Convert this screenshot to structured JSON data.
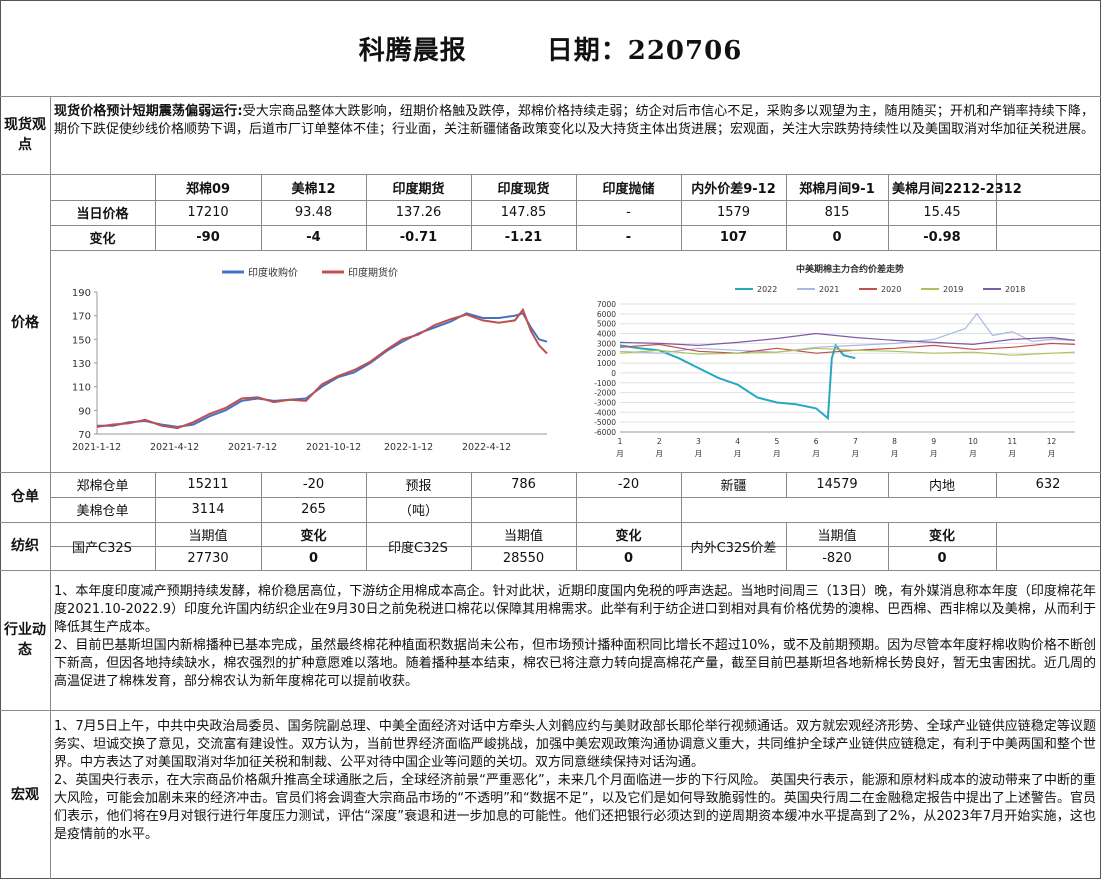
{
  "header": {
    "title": "科腾晨报",
    "date": "日期：220706"
  },
  "sections": {
    "spot": "现货观点",
    "price": "价格",
    "warehouse": "仓单",
    "yarn": "纺织",
    "industry": "行业动态",
    "macro": "宏观"
  },
  "spot_view": {
    "lead": "现货价格预计短期震荡偏弱运行:",
    "text": "受大宗商品整体大跌影响，纽期价格触及跌停，郑棉价格持续走弱；纺企对后市信心不足，采购多以观望为主，随用随买；开机和产销率持续下降，期价下跌促使纱线价格顺势下调，后道市厂订单整体不佳；行业面，关注新疆储备政策变化以及大持货主体出货进展；宏观面，关注大宗跌势持续性以及美国取消对华加征关税进展。"
  },
  "price_table": {
    "headers": [
      "郑棉09",
      "美棉12",
      "印度期货",
      "印度现货",
      "印度抛储",
      "内外价差9-12",
      "郑棉月间9-1",
      "美棉月间2212-2312"
    ],
    "rows": [
      {
        "label": "当日价格",
        "values": [
          "17210",
          "93.48",
          "137.26",
          "147.85",
          "-",
          "1579",
          "815",
          "15.45"
        ]
      },
      {
        "label": "变化",
        "values": [
          "-90",
          "-4",
          "-0.71",
          "-1.21",
          "-",
          "107",
          "0",
          "-0.98"
        ]
      }
    ]
  },
  "chart_data": [
    {
      "type": "line",
      "title": "",
      "legend": [
        "印度收购价",
        "印度期货价"
      ],
      "legend_position": "top",
      "colors": [
        "#4472c4",
        "#c0504d"
      ],
      "x_ticks": [
        "2021-1-12",
        "2021-4-12",
        "2021-7-12",
        "2021-10-12",
        "2022-1-12",
        "2022-4-12"
      ],
      "y_ticks": [
        "70",
        "90",
        "110",
        "130",
        "150",
        "170",
        "190"
      ],
      "ylim": [
        70,
        190
      ],
      "grid": false,
      "series": [
        {
          "name": "印度收购价",
          "points": [
            [
              0,
              77
            ],
            [
              10,
              77
            ],
            [
              20,
              80
            ],
            [
              30,
              81
            ],
            [
              40,
              78
            ],
            [
              50,
              76
            ],
            [
              60,
              78
            ],
            [
              70,
              85
            ],
            [
              80,
              90
            ],
            [
              90,
              98
            ],
            [
              100,
              100
            ],
            [
              110,
              98
            ],
            [
              120,
              99
            ],
            [
              130,
              100
            ],
            [
              140,
              110
            ],
            [
              150,
              118
            ],
            [
              160,
              122
            ],
            [
              170,
              130
            ],
            [
              180,
              140
            ],
            [
              190,
              148
            ],
            [
              200,
              155
            ],
            [
              210,
              160
            ],
            [
              220,
              165
            ],
            [
              230,
              172
            ],
            [
              240,
              168
            ],
            [
              250,
              168
            ],
            [
              260,
              170
            ],
            [
              265,
              172
            ],
            [
              270,
              160
            ],
            [
              275,
              150
            ],
            [
              280,
              148
            ]
          ]
        },
        {
          "name": "印度期货价",
          "points": [
            [
              0,
              76
            ],
            [
              10,
              78
            ],
            [
              20,
              79
            ],
            [
              30,
              82
            ],
            [
              40,
              77
            ],
            [
              50,
              75
            ],
            [
              60,
              80
            ],
            [
              70,
              87
            ],
            [
              80,
              92
            ],
            [
              90,
              100
            ],
            [
              100,
              101
            ],
            [
              110,
              97
            ],
            [
              120,
              99
            ],
            [
              130,
              98
            ],
            [
              140,
              112
            ],
            [
              150,
              119
            ],
            [
              160,
              124
            ],
            [
              170,
              131
            ],
            [
              180,
              141
            ],
            [
              190,
              150
            ],
            [
              200,
              154
            ],
            [
              210,
              162
            ],
            [
              220,
              167
            ],
            [
              230,
              171
            ],
            [
              240,
              166
            ],
            [
              250,
              164
            ],
            [
              260,
              166
            ],
            [
              265,
              175
            ],
            [
              270,
              157
            ],
            [
              275,
              145
            ],
            [
              280,
              138
            ]
          ]
        }
      ]
    },
    {
      "type": "line",
      "title": "中美期棉主力合约价差走势",
      "legend": [
        "2022",
        "2021",
        "2020",
        "2019",
        "2018"
      ],
      "legend_position": "top",
      "colors": [
        "#26a9c0",
        "#a9b8e0",
        "#c0504d",
        "#a9c45a",
        "#7e5ba8"
      ],
      "x_ticks": [
        "1月",
        "2月",
        "3月",
        "4月",
        "5月",
        "6月",
        "7月",
        "8月",
        "9月",
        "10月",
        "11月",
        "12月"
      ],
      "y_ticks": [
        "-6000",
        "-5000",
        "-4000",
        "-3000",
        "-2000",
        "-1000",
        "0",
        "1000",
        "2000",
        "3000",
        "4000",
        "5000",
        "6000",
        "7000"
      ],
      "ylim": [
        -6000,
        7000
      ],
      "grid": true,
      "series": [
        {
          "name": "2022",
          "points": [
            [
              1,
              2800
            ],
            [
              1.5,
              2500
            ],
            [
              2,
              2300
            ],
            [
              2.5,
              1500
            ],
            [
              3,
              500
            ],
            [
              3.5,
              -500
            ],
            [
              4,
              -1200
            ],
            [
              4.5,
              -2500
            ],
            [
              5,
              -3000
            ],
            [
              5.5,
              -3200
            ],
            [
              6,
              -3600
            ],
            [
              6.3,
              -4600
            ],
            [
              6.4,
              1500
            ],
            [
              6.5,
              2800
            ],
            [
              6.7,
              1800
            ],
            [
              7,
              1500
            ]
          ]
        },
        {
          "name": "2021",
          "points": [
            [
              1,
              2200
            ],
            [
              2,
              2000
            ],
            [
              3,
              2500
            ],
            [
              4,
              2300
            ],
            [
              5,
              2100
            ],
            [
              6,
              2600
            ],
            [
              7,
              2800
            ],
            [
              8,
              3000
            ],
            [
              9,
              3400
            ],
            [
              9.8,
              4500
            ],
            [
              10.1,
              6000
            ],
            [
              10.5,
              3800
            ],
            [
              11,
              4200
            ],
            [
              11.5,
              3200
            ],
            [
              12,
              3400
            ],
            [
              12.6,
              3300
            ]
          ]
        },
        {
          "name": "2020",
          "points": [
            [
              1,
              2600
            ],
            [
              2,
              2900
            ],
            [
              3,
              2200
            ],
            [
              4,
              2000
            ],
            [
              5,
              2500
            ],
            [
              6,
              2000
            ],
            [
              7,
              2300
            ],
            [
              8,
              2500
            ],
            [
              9,
              2800
            ],
            [
              10,
              2400
            ],
            [
              11,
              2600
            ],
            [
              12,
              3000
            ],
            [
              12.6,
              2900
            ]
          ]
        },
        {
          "name": "2019",
          "points": [
            [
              1,
              2000
            ],
            [
              2,
              2300
            ],
            [
              3,
              1900
            ],
            [
              4,
              2000
            ],
            [
              5,
              2100
            ],
            [
              6,
              2500
            ],
            [
              7,
              2300
            ],
            [
              8,
              2200
            ],
            [
              9,
              2000
            ],
            [
              10,
              2100
            ],
            [
              11,
              1800
            ],
            [
              12,
              2000
            ],
            [
              12.6,
              2100
            ]
          ]
        },
        {
          "name": "2018",
          "points": [
            [
              1,
              3100
            ],
            [
              2,
              3000
            ],
            [
              3,
              2800
            ],
            [
              4,
              3100
            ],
            [
              5,
              3500
            ],
            [
              6,
              4000
            ],
            [
              7,
              3600
            ],
            [
              8,
              3300
            ],
            [
              9,
              3100
            ],
            [
              10,
              2900
            ],
            [
              11,
              3400
            ],
            [
              12,
              3600
            ],
            [
              12.6,
              3300
            ]
          ]
        }
      ]
    }
  ],
  "warehouse": {
    "row1": {
      "label": "郑棉仓单",
      "value": "15211",
      "change": "-20",
      "forecast_label": "预报",
      "forecast_value": "786",
      "forecast_change": "-20",
      "xinjiang_label": "新疆",
      "xinjiang_value": "14579",
      "inland_label": "内地",
      "inland_value": "632"
    },
    "row2": {
      "label": "美棉仓单",
      "value": "3114",
      "change": "265",
      "unit": "（吨）"
    }
  },
  "yarn": {
    "domestic_label": "国产C32S",
    "india_label": "印度C32S",
    "spread_label": "内外C32S价差",
    "current_label": "当期值",
    "change_label": "变化",
    "domestic_value": "27730",
    "domestic_change": "0",
    "india_value": "28550",
    "india_change": "0",
    "spread_value": "-820",
    "spread_change": "0"
  },
  "industry": {
    "p1": "1、本年度印度减产预期持续发酵，棉价稳居高位，下游纺企用棉成本高企。针对此状，近期印度国内免税的呼声迭起。当地时间周三（13日）晚，有外媒消息称本年度（印度棉花年度2021.10-2022.9）印度允许国内纺织企业在9月30日之前免税进口棉花以保障其用棉需求。此举有利于纺企进口到相对具有价格优势的澳棉、巴西棉、西非棉以及美棉，从而利于降低其生产成本。",
    "p2": "2、目前巴基斯坦国内新棉播种已基本完成，虽然最终棉花种植面积数据尚未公布，但市场预计播种面积同比增长不超过10%，或不及前期预期。因为尽管本年度籽棉收购价格不断创下新高，但因各地持续缺水，棉农强烈的扩种意愿难以落地。随着播种基本结束，棉农已将注意力转向提高棉花产量，截至目前巴基斯坦各地新棉长势良好，暂无虫害困扰。近几周的高温促进了棉株发育，部分棉农认为新年度棉花可以提前收获。"
  },
  "macro": {
    "p1": "1、7月5日上午，中共中央政治局委员、国务院副总理、中美全面经济对话中方牵头人刘鹤应约与美财政部长耶伦举行视频通话。双方就宏观经济形势、全球产业链供应链稳定等议题务实、坦诚交换了意见，交流富有建设性。双方认为，当前世界经济面临严峻挑战，加强中美宏观政策沟通协调意义重大，共同维护全球产业链供应链稳定，有利于中美两国和整个世界。中方表达了对美国取消对华加征关税和制裁、公平对待中国企业等问题的关切。双方同意继续保持对话沟通。",
    "p2": "2、英国央行表示，在大宗商品价格飙升推高全球通胀之后，全球经济前景“严重恶化”，未来几个月面临进一步的下行风险。  英国央行表示，能源和原材料成本的波动带来了中断的重大风险，可能会加剧未来的经济冲击。官员们将会调查大宗商品市场的“不透明”和“数据不足”，以及它们是如何导致脆弱性的。英国央行周二在金融稳定报告中提出了上述警告。官员们表示，他们将在9月对银行进行年度压力测试，评估“深度”衰退和进一步加息的可能性。他们还把银行必须达到的逆周期资本缓冲水平提高到了2%，从2023年7月开始实施，这也是疫情前的水平。"
  }
}
